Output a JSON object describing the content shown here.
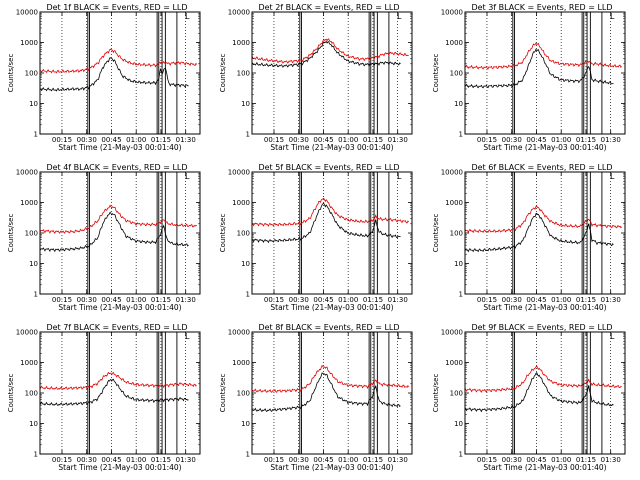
{
  "layout": {
    "rows": 3,
    "cols": 3
  },
  "shared": {
    "y_axis_label": "Counts/sec",
    "x_axis_label": "Start Time (21-May-03 00:01:40)",
    "x_tick_labels": [
      "00:15",
      "00:30",
      "00:45",
      "01:00",
      "01:15",
      "01:30"
    ],
    "y_tick_labels": [
      "1",
      "10",
      "100",
      "1000",
      "10000"
    ],
    "corner_mark": "L",
    "colors": {
      "events": "#000000",
      "lld": "#e00000"
    }
  },
  "chart_data": [
    {
      "type": "line",
      "title": "Det 1f BLACK = Events, RED = LLD",
      "x_range_minutes": [
        0,
        97
      ],
      "ylim": [
        1,
        10000
      ],
      "y_scale": "log",
      "vertical_lines_solid": [
        29,
        30,
        71,
        72,
        74,
        76,
        83
      ],
      "vertical_lines_dotted": [
        13.3,
        28.3,
        43.3,
        58.3,
        73.3,
        88.3
      ],
      "series": [
        {
          "color": "#000000",
          "x": [
            0,
            10,
            20,
            25,
            30,
            35,
            38,
            41,
            43,
            45,
            47,
            50,
            55,
            60,
            65,
            70,
            72,
            73,
            74,
            76,
            78,
            80,
            85,
            90
          ],
          "values": [
            30,
            28,
            30,
            30,
            35,
            60,
            150,
            250,
            310,
            260,
            160,
            80,
            55,
            50,
            48,
            48,
            60,
            150,
            90,
            160,
            45,
            42,
            40,
            38
          ]
        },
        {
          "color": "#e00000",
          "x": [
            0,
            10,
            20,
            25,
            30,
            35,
            38,
            41,
            43,
            45,
            47,
            50,
            55,
            60,
            65,
            70,
            72,
            73,
            74,
            76,
            78,
            80,
            85,
            90,
            95
          ],
          "values": [
            120,
            110,
            115,
            120,
            140,
            210,
            350,
            500,
            580,
            520,
            400,
            280,
            210,
            190,
            185,
            180,
            195,
            240,
            210,
            220,
            200,
            210,
            220,
            200,
            190
          ]
        }
      ]
    },
    {
      "type": "line",
      "title": "Det 2f BLACK = Events, RED = LLD",
      "x_range_minutes": [
        0,
        97
      ],
      "ylim": [
        1,
        10000
      ],
      "y_scale": "log",
      "vertical_lines_solid": [
        29,
        30,
        71,
        72,
        74,
        76,
        83
      ],
      "vertical_lines_dotted": [
        13.3,
        28.3,
        43.3,
        58.3,
        73.3,
        88.3
      ],
      "series": [
        {
          "color": "#000000",
          "x": [
            0,
            10,
            20,
            30,
            35,
            40,
            43,
            45,
            48,
            52,
            58,
            65,
            70,
            75,
            80,
            85,
            90
          ],
          "values": [
            200,
            180,
            170,
            200,
            300,
            550,
            900,
            1100,
            850,
            450,
            250,
            200,
            190,
            200,
            220,
            210,
            200
          ]
        },
        {
          "color": "#e00000",
          "x": [
            0,
            10,
            20,
            30,
            35,
            40,
            43,
            45,
            48,
            52,
            58,
            65,
            70,
            75,
            80,
            85,
            90,
            95
          ],
          "values": [
            320,
            260,
            230,
            260,
            380,
            700,
            1100,
            1300,
            1100,
            600,
            360,
            290,
            290,
            330,
            420,
            450,
            420,
            380
          ]
        }
      ]
    },
    {
      "type": "line",
      "title": "Det 3f BLACK = Events, RED = LLD",
      "x_range_minutes": [
        0,
        97
      ],
      "ylim": [
        1,
        10000
      ],
      "y_scale": "log",
      "vertical_lines_solid": [
        29,
        30,
        71,
        72,
        74,
        76,
        83
      ],
      "vertical_lines_dotted": [
        13.3,
        28.3,
        43.3,
        58.3,
        73.3,
        88.3
      ],
      "series": [
        {
          "color": "#000000",
          "x": [
            0,
            10,
            20,
            30,
            35,
            38,
            41,
            43,
            45,
            48,
            52,
            58,
            65,
            70,
            73,
            75,
            77,
            80,
            85,
            90
          ],
          "values": [
            38,
            36,
            38,
            40,
            60,
            150,
            400,
            600,
            500,
            250,
            90,
            60,
            55,
            55,
            90,
            180,
            60,
            55,
            50,
            45
          ]
        },
        {
          "color": "#e00000",
          "x": [
            0,
            10,
            20,
            30,
            35,
            38,
            41,
            43,
            45,
            48,
            52,
            58,
            65,
            70,
            73,
            75,
            77,
            80,
            85,
            90,
            95
          ],
          "values": [
            160,
            150,
            155,
            170,
            230,
            450,
            750,
            950,
            800,
            450,
            250,
            200,
            190,
            185,
            220,
            250,
            200,
            200,
            180,
            170,
            165
          ]
        }
      ]
    },
    {
      "type": "line",
      "title": "Det 4f BLACK = Events, RED = LLD",
      "x_range_minutes": [
        0,
        97
      ],
      "ylim": [
        1,
        10000
      ],
      "y_scale": "log",
      "vertical_lines_solid": [
        29,
        30,
        71,
        72,
        74,
        76,
        83
      ],
      "vertical_lines_dotted": [
        13.3,
        28.3,
        43.3,
        58.3,
        73.3,
        88.3
      ],
      "series": [
        {
          "color": "#000000",
          "x": [
            0,
            10,
            20,
            25,
            30,
            35,
            38,
            41,
            43,
            45,
            48,
            52,
            58,
            65,
            70,
            73,
            75,
            77,
            80,
            85,
            90
          ],
          "values": [
            30,
            28,
            30,
            32,
            38,
            70,
            200,
            380,
            450,
            400,
            200,
            80,
            55,
            50,
            50,
            90,
            180,
            60,
            45,
            42,
            40
          ]
        },
        {
          "color": "#e00000",
          "x": [
            0,
            10,
            20,
            25,
            30,
            35,
            38,
            41,
            43,
            45,
            48,
            52,
            58,
            65,
            70,
            73,
            75,
            77,
            80,
            85,
            90,
            95
          ],
          "values": [
            120,
            110,
            110,
            120,
            150,
            250,
            450,
            650,
            750,
            680,
            420,
            260,
            200,
            190,
            190,
            230,
            280,
            210,
            190,
            180,
            175,
            170
          ]
        }
      ]
    },
    {
      "type": "line",
      "title": "Det 5f BLACK = Events, RED = LLD",
      "x_range_minutes": [
        0,
        97
      ],
      "ylim": [
        1,
        10000
      ],
      "y_scale": "log",
      "vertical_lines_solid": [
        29,
        30,
        71,
        72,
        74,
        76,
        83
      ],
      "vertical_lines_dotted": [
        13.3,
        28.3,
        43.3,
        58.3,
        73.3,
        88.3
      ],
      "series": [
        {
          "color": "#000000",
          "x": [
            0,
            10,
            20,
            30,
            35,
            38,
            41,
            43,
            45,
            48,
            52,
            58,
            65,
            70,
            73,
            75,
            77,
            80,
            85,
            90
          ],
          "values": [
            60,
            55,
            58,
            65,
            100,
            250,
            600,
            900,
            800,
            450,
            180,
            100,
            85,
            80,
            110,
            250,
            110,
            90,
            80,
            75
          ]
        },
        {
          "color": "#e00000",
          "x": [
            0,
            10,
            20,
            30,
            35,
            38,
            41,
            43,
            45,
            48,
            52,
            58,
            65,
            70,
            73,
            75,
            77,
            80,
            85,
            90,
            95
          ],
          "values": [
            200,
            190,
            190,
            210,
            300,
            600,
            1100,
            1300,
            1200,
            700,
            380,
            270,
            240,
            235,
            260,
            340,
            290,
            280,
            270,
            250,
            230
          ]
        }
      ]
    },
    {
      "type": "line",
      "title": "Det 6f BLACK = Events, RED = LLD",
      "x_range_minutes": [
        0,
        97
      ],
      "ylim": [
        1,
        10000
      ],
      "y_scale": "log",
      "vertical_lines_solid": [
        29,
        30,
        71,
        72,
        74,
        76,
        83
      ],
      "vertical_lines_dotted": [
        13.3,
        28.3,
        43.3,
        58.3,
        73.3,
        88.3
      ],
      "series": [
        {
          "color": "#000000",
          "x": [
            0,
            10,
            20,
            30,
            35,
            38,
            41,
            43,
            45,
            48,
            52,
            58,
            65,
            70,
            73,
            75,
            77,
            80,
            85,
            90
          ],
          "values": [
            28,
            27,
            30,
            35,
            55,
            130,
            300,
            420,
            380,
            200,
            80,
            55,
            50,
            48,
            90,
            200,
            60,
            48,
            45,
            42
          ]
        },
        {
          "color": "#e00000",
          "x": [
            0,
            10,
            20,
            30,
            35,
            38,
            41,
            43,
            45,
            48,
            52,
            58,
            65,
            70,
            73,
            75,
            77,
            80,
            85,
            90,
            95
          ],
          "values": [
            120,
            115,
            115,
            130,
            200,
            380,
            600,
            720,
            650,
            400,
            240,
            180,
            170,
            165,
            230,
            280,
            190,
            180,
            170,
            165,
            160
          ]
        }
      ]
    },
    {
      "type": "line",
      "title": "Det 7f BLACK = Events, RED = LLD",
      "x_range_minutes": [
        0,
        97
      ],
      "ylim": [
        1,
        10000
      ],
      "y_scale": "log",
      "vertical_lines_solid": [
        29,
        30,
        71,
        72,
        74,
        76,
        83
      ],
      "vertical_lines_dotted": [
        13.3,
        28.3,
        43.3,
        58.3,
        73.3,
        88.3
      ],
      "series": [
        {
          "color": "#000000",
          "x": [
            0,
            10,
            20,
            30,
            35,
            38,
            41,
            43,
            45,
            48,
            52,
            58,
            65,
            70,
            75,
            80,
            85,
            90
          ],
          "values": [
            45,
            42,
            44,
            48,
            65,
            120,
            220,
            280,
            250,
            150,
            80,
            60,
            58,
            56,
            60,
            62,
            65,
            60
          ]
        },
        {
          "color": "#e00000",
          "x": [
            0,
            10,
            20,
            30,
            35,
            38,
            41,
            43,
            45,
            48,
            52,
            58,
            65,
            70,
            75,
            80,
            85,
            90,
            95
          ],
          "values": [
            150,
            140,
            145,
            155,
            210,
            320,
            420,
            450,
            420,
            330,
            230,
            190,
            180,
            175,
            175,
            190,
            200,
            190,
            175
          ]
        }
      ]
    },
    {
      "type": "line",
      "title": "Det 8f BLACK = Events, RED = LLD",
      "x_range_minutes": [
        0,
        97
      ],
      "ylim": [
        1,
        10000
      ],
      "y_scale": "log",
      "vertical_lines_solid": [
        29,
        30,
        71,
        72,
        74,
        76,
        83
      ],
      "vertical_lines_dotted": [
        13.3,
        28.3,
        43.3,
        58.3,
        73.3,
        88.3
      ],
      "series": [
        {
          "color": "#000000",
          "x": [
            0,
            10,
            20,
            30,
            35,
            38,
            41,
            43,
            45,
            48,
            52,
            58,
            65,
            70,
            73,
            75,
            77,
            80,
            85,
            90
          ],
          "values": [
            28,
            27,
            30,
            35,
            55,
            130,
            300,
            450,
            400,
            200,
            75,
            50,
            45,
            45,
            80,
            170,
            55,
            45,
            40,
            38
          ]
        },
        {
          "color": "#e00000",
          "x": [
            0,
            10,
            20,
            30,
            35,
            38,
            41,
            43,
            45,
            48,
            52,
            58,
            65,
            70,
            73,
            75,
            77,
            80,
            85,
            90,
            95
          ],
          "values": [
            120,
            115,
            118,
            130,
            200,
            380,
            600,
            750,
            680,
            420,
            240,
            180,
            170,
            165,
            210,
            260,
            200,
            190,
            180,
            170,
            160
          ]
        }
      ]
    },
    {
      "type": "line",
      "title": "Det 9f BLACK = Events, RED = LLD",
      "x_range_minutes": [
        0,
        97
      ],
      "ylim": [
        1,
        10000
      ],
      "y_scale": "log",
      "vertical_lines_solid": [
        29,
        30,
        71,
        72,
        74,
        76,
        83
      ],
      "vertical_lines_dotted": [
        13.3,
        28.3,
        43.3,
        58.3,
        73.3,
        88.3
      ],
      "series": [
        {
          "color": "#000000",
          "x": [
            0,
            10,
            20,
            30,
            35,
            38,
            41,
            43,
            45,
            48,
            52,
            58,
            65,
            70,
            73,
            75,
            77,
            80,
            85,
            90
          ],
          "values": [
            30,
            28,
            30,
            35,
            55,
            130,
            300,
            430,
            380,
            200,
            80,
            55,
            50,
            48,
            80,
            160,
            55,
            48,
            42,
            40
          ]
        },
        {
          "color": "#e00000",
          "x": [
            0,
            10,
            20,
            30,
            35,
            38,
            41,
            43,
            45,
            48,
            52,
            58,
            65,
            70,
            73,
            75,
            77,
            80,
            85,
            90,
            95
          ],
          "values": [
            130,
            120,
            125,
            140,
            210,
            380,
            580,
            700,
            640,
            400,
            240,
            185,
            175,
            170,
            210,
            250,
            195,
            185,
            175,
            165,
            160
          ]
        }
      ]
    }
  ]
}
